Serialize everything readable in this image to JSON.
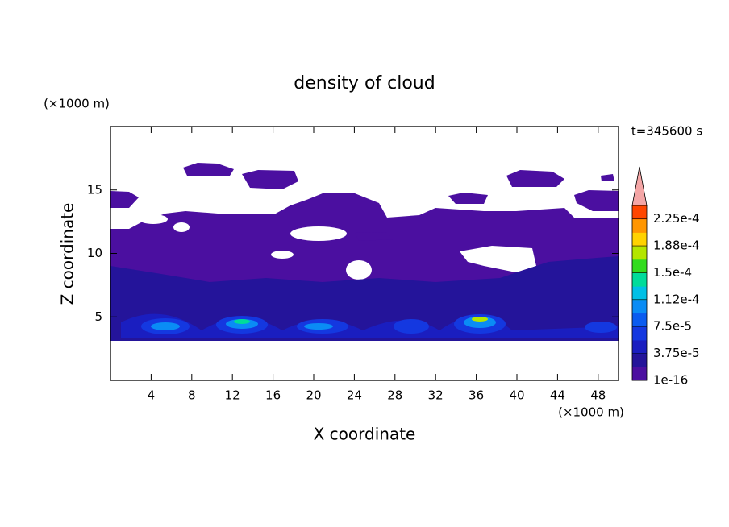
{
  "chart_data": {
    "type": "contour",
    "title": "density of cloud",
    "x_label": "X coordinate",
    "y_label": "Z coordinate",
    "x_unit": "(×1000 m)",
    "y_unit": "(×1000 m)",
    "annotation": "t=345600 s",
    "xlim": [
      0,
      50
    ],
    "xticks": [
      4,
      8,
      12,
      16,
      20,
      24,
      28,
      32,
      36,
      40,
      44,
      48
    ],
    "ylim": [
      0,
      20
    ],
    "yticks": [
      5,
      10,
      15
    ],
    "colorbar": {
      "lim": [
        1e-16,
        0.00024375
      ],
      "ticks": [
        {
          "value": 1e-16,
          "label": "1e-16"
        },
        {
          "value": 3.75e-05,
          "label": "3.75e-5"
        },
        {
          "value": 7.5e-05,
          "label": "7.5e-5"
        },
        {
          "value": 0.0001125,
          "label": "1.12e-4"
        },
        {
          "value": 0.00015,
          "label": "1.5e-4"
        },
        {
          "value": 0.0001875,
          "label": "1.88e-4"
        },
        {
          "value": 0.000225,
          "label": "2.25e-4"
        }
      ],
      "colors": [
        "#4b0fa0",
        "#24149a",
        "#1a1ec0",
        "#1438e0",
        "#0a5cf0",
        "#0a8cf5",
        "#00c0e6",
        "#00dc9a",
        "#32dc1e",
        "#b4e600",
        "#ffd200",
        "#ff9600",
        "#ff4600"
      ],
      "extend_color": "#f4a6a6"
    }
  }
}
